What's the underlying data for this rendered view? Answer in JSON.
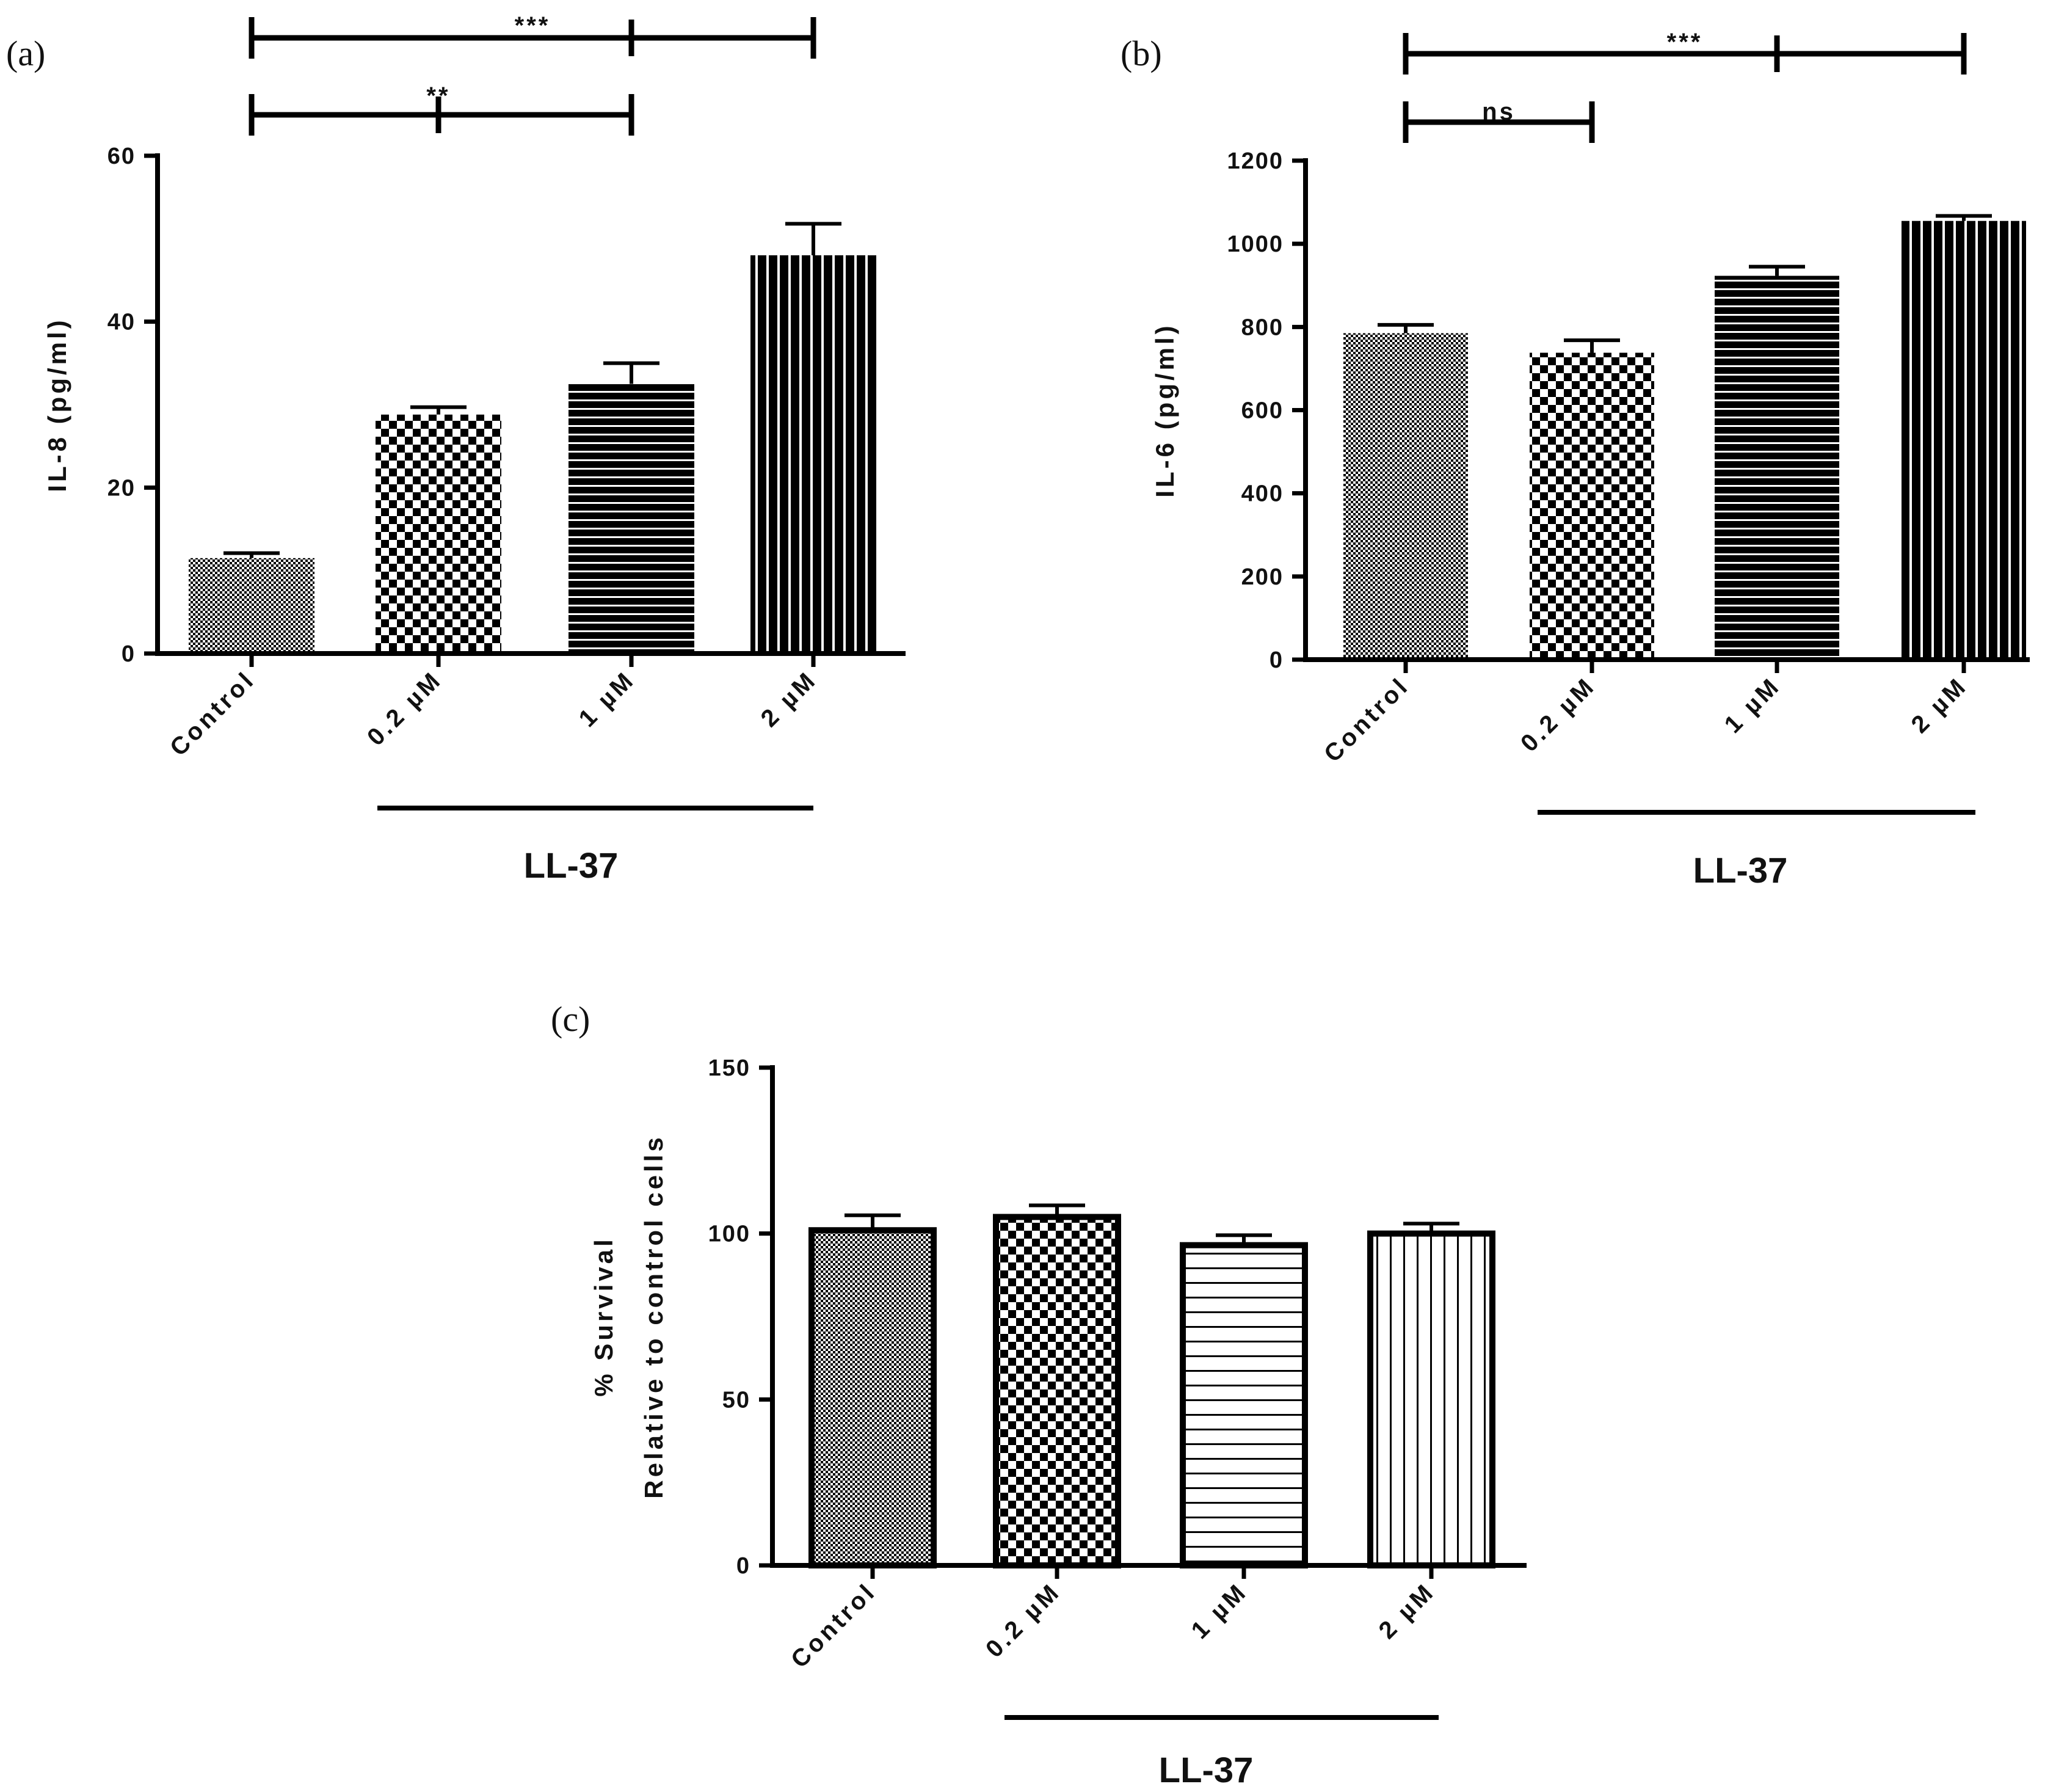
{
  "chart_data": [
    {
      "id": "a",
      "panel_label": "(a)",
      "type": "bar",
      "categories": [
        "Control",
        "0.2 µM",
        "1 µM",
        "2 µM"
      ],
      "values": [
        11.5,
        28.8,
        32.5,
        48
      ],
      "errors": [
        0.6,
        0.9,
        2.5,
        3.8
      ],
      "patterns": [
        "fine-checker",
        "checker",
        "horizontal-stripes",
        "vertical-stripes"
      ],
      "ylabel": "IL-8 (pg/ml)",
      "ylim": [
        0,
        60
      ],
      "yticks": [
        "0",
        "20",
        "40",
        "60"
      ],
      "group_label": "LL-37",
      "grid": false,
      "significance": [
        {
          "text": "**",
          "from": 0,
          "to": 2
        },
        {
          "text": "***",
          "from": 0,
          "to": 3
        }
      ]
    },
    {
      "id": "b",
      "panel_label": "(b)",
      "type": "bar",
      "categories": [
        "Control",
        "0.2 µM",
        "1 µM",
        "2 µM"
      ],
      "values": [
        785,
        738,
        923,
        1055
      ],
      "errors": [
        20,
        30,
        22,
        12
      ],
      "patterns": [
        "fine-checker",
        "checker",
        "horizontal-stripes",
        "vertical-stripes"
      ],
      "ylabel": "IL-6 (pg/ml)",
      "ylim": [
        0,
        1200
      ],
      "yticks": [
        "0",
        "200",
        "400",
        "600",
        "800",
        "1000",
        "1200"
      ],
      "group_label": "LL-37",
      "grid": false,
      "significance": [
        {
          "text": "ns",
          "from": 0,
          "to": 1
        },
        {
          "text": "***",
          "from": 0,
          "to": 3
        }
      ]
    },
    {
      "id": "c",
      "panel_label": "(c)",
      "type": "bar",
      "categories": [
        "Control",
        "0.2 µM",
        "1 µM",
        "2 µM"
      ],
      "values": [
        101,
        105,
        96.5,
        100
      ],
      "errors": [
        4.5,
        3.5,
        3,
        3
      ],
      "patterns": [
        "fine-checker",
        "checker",
        "horizontal-stripes-open",
        "vertical-stripes-open"
      ],
      "ylabel": "% Survival",
      "ylabel2": "Relative to control cells",
      "ylim": [
        0,
        150
      ],
      "yticks": [
        "0",
        "50",
        "100",
        "150"
      ],
      "group_label": "LL-37",
      "grid": false,
      "significance": []
    }
  ]
}
